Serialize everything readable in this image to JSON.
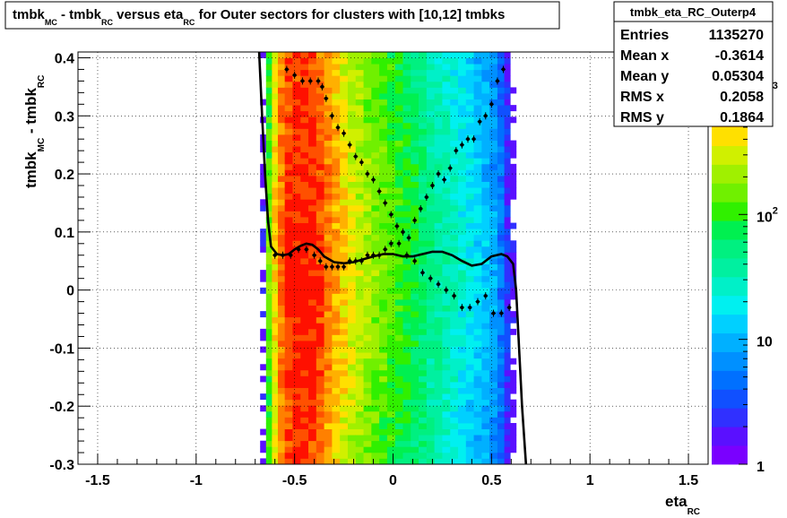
{
  "title": {
    "main1": "tmbk",
    "sub1": "MC",
    "main2": " - tmbk",
    "sub2": "RC",
    "main3": " versus eta",
    "sub3": "RC",
    "main4": " for Outer sectors for clusters with [10,12] tmbks"
  },
  "stats": {
    "name": "tmbk_eta_RC_Outerp4",
    "rows": [
      {
        "label": "Entries",
        "value": "1135270"
      },
      {
        "label": "Mean x",
        "value": "-0.3614"
      },
      {
        "label": "Mean y",
        "value": "0.05304"
      },
      {
        "label": "RMS x",
        "value": "0.2058"
      },
      {
        "label": "RMS y",
        "value": "0.1864"
      }
    ]
  },
  "chart_data": {
    "type": "heatmap",
    "xlabel": {
      "main": "eta",
      "sub": "RC"
    },
    "ylabel": {
      "main1": "tmbk",
      "sub1": "MC",
      "main2": " - tmbk",
      "sub2": "RC"
    },
    "xlim": [
      -1.6,
      1.6
    ],
    "ylim": [
      -0.3,
      0.41
    ],
    "xticks": [
      -1.5,
      -1,
      -0.5,
      0,
      0.5,
      1,
      1.5
    ],
    "xtick_labels": [
      "-1.5",
      "-1",
      "-0.5",
      "0",
      "0.5",
      "1",
      "1.5"
    ],
    "yticks": [
      -0.3,
      -0.2,
      -0.1,
      0,
      0.1,
      0.2,
      0.3,
      0.4
    ],
    "ytick_labels": [
      "-0.3",
      "-0.2",
      "-0.1",
      "0",
      "0.1",
      "0.2",
      "0.3",
      "0.4"
    ],
    "grid": true,
    "log_z": true,
    "zlim": [
      1,
      2000
    ],
    "z_ticks": [
      1,
      10,
      100,
      1000
    ],
    "z_tick_labels": [
      {
        "base": "1",
        "exp": ""
      },
      {
        "base": "10",
        "exp": ""
      },
      {
        "base": "10",
        "exp": "2"
      },
      {
        "base": "10",
        "exp": "3"
      }
    ],
    "palette": [
      "#7a00ff",
      "#5a10ff",
      "#3030ff",
      "#1050ff",
      "#0070ff",
      "#0090ff",
      "#00b0ff",
      "#00d0ff",
      "#00f0f0",
      "#00f0c8",
      "#00f0a0",
      "#00f080",
      "#00f050",
      "#30f000",
      "#70f000",
      "#a0f000",
      "#d0f000",
      "#ffe000",
      "#ffb000",
      "#ff8000",
      "#ff5000",
      "#ff1000"
    ],
    "density_profile": [
      {
        "eta": -0.66,
        "z": 2
      },
      {
        "eta": -0.63,
        "z": 150
      },
      {
        "eta": -0.6,
        "z": 500
      },
      {
        "eta": -0.57,
        "z": 1100
      },
      {
        "eta": -0.53,
        "z": 1800
      },
      {
        "eta": -0.49,
        "z": 2000
      },
      {
        "eta": -0.45,
        "z": 2000
      },
      {
        "eta": -0.41,
        "z": 1900
      },
      {
        "eta": -0.37,
        "z": 1400
      },
      {
        "eta": -0.33,
        "z": 1000
      },
      {
        "eta": -0.29,
        "z": 700
      },
      {
        "eta": -0.25,
        "z": 500
      },
      {
        "eta": -0.21,
        "z": 380
      },
      {
        "eta": -0.17,
        "z": 300
      },
      {
        "eta": -0.13,
        "z": 250
      },
      {
        "eta": -0.09,
        "z": 200
      },
      {
        "eta": -0.05,
        "z": 170
      },
      {
        "eta": -0.01,
        "z": 140
      },
      {
        "eta": 0.03,
        "z": 120
      },
      {
        "eta": 0.07,
        "z": 100
      },
      {
        "eta": 0.11,
        "z": 85
      },
      {
        "eta": 0.15,
        "z": 70
      },
      {
        "eta": 0.19,
        "z": 55
      },
      {
        "eta": 0.23,
        "z": 45
      },
      {
        "eta": 0.27,
        "z": 38
      },
      {
        "eta": 0.31,
        "z": 30
      },
      {
        "eta": 0.35,
        "z": 25
      },
      {
        "eta": 0.39,
        "z": 20
      },
      {
        "eta": 0.43,
        "z": 16
      },
      {
        "eta": 0.47,
        "z": 13
      },
      {
        "eta": 0.51,
        "z": 10
      },
      {
        "eta": 0.55,
        "z": 6
      },
      {
        "eta": 0.58,
        "z": 3
      },
      {
        "eta": 0.61,
        "z": 2
      }
    ],
    "upper_points": [
      {
        "x": -0.54,
        "y": 0.38
      },
      {
        "x": -0.5,
        "y": 0.37
      },
      {
        "x": -0.46,
        "y": 0.36
      },
      {
        "x": -0.42,
        "y": 0.36
      },
      {
        "x": -0.38,
        "y": 0.36
      },
      {
        "x": -0.36,
        "y": 0.35
      },
      {
        "x": -0.34,
        "y": 0.33
      },
      {
        "x": -0.31,
        "y": 0.3
      },
      {
        "x": -0.28,
        "y": 0.28
      },
      {
        "x": -0.25,
        "y": 0.27
      },
      {
        "x": -0.22,
        "y": 0.25
      },
      {
        "x": -0.19,
        "y": 0.23
      },
      {
        "x": -0.16,
        "y": 0.22
      },
      {
        "x": -0.13,
        "y": 0.2
      },
      {
        "x": -0.1,
        "y": 0.19
      },
      {
        "x": -0.07,
        "y": 0.17
      },
      {
        "x": -0.04,
        "y": 0.15
      },
      {
        "x": -0.01,
        "y": 0.13
      },
      {
        "x": 0.02,
        "y": 0.11
      },
      {
        "x": 0.05,
        "y": 0.1
      },
      {
        "x": 0.08,
        "y": 0.09
      },
      {
        "x": 0.11,
        "y": 0.12
      },
      {
        "x": 0.14,
        "y": 0.14
      },
      {
        "x": 0.17,
        "y": 0.16
      },
      {
        "x": 0.2,
        "y": 0.18
      },
      {
        "x": 0.23,
        "y": 0.2
      },
      {
        "x": 0.26,
        "y": 0.19
      },
      {
        "x": 0.29,
        "y": 0.21
      },
      {
        "x": 0.32,
        "y": 0.24
      },
      {
        "x": 0.35,
        "y": 0.25
      },
      {
        "x": 0.38,
        "y": 0.26
      },
      {
        "x": 0.41,
        "y": 0.26
      },
      {
        "x": 0.44,
        "y": 0.29
      },
      {
        "x": 0.47,
        "y": 0.3
      },
      {
        "x": 0.5,
        "y": 0.32
      },
      {
        "x": 0.53,
        "y": 0.36
      },
      {
        "x": 0.56,
        "y": 0.38
      }
    ],
    "lower_points": [
      {
        "x": -0.6,
        "y": 0.06
      },
      {
        "x": -0.56,
        "y": 0.06
      },
      {
        "x": -0.52,
        "y": 0.06
      },
      {
        "x": -0.48,
        "y": 0.07
      },
      {
        "x": -0.44,
        "y": 0.07
      },
      {
        "x": -0.4,
        "y": 0.06
      },
      {
        "x": -0.37,
        "y": 0.05
      },
      {
        "x": -0.34,
        "y": 0.04
      },
      {
        "x": -0.31,
        "y": 0.04
      },
      {
        "x": -0.28,
        "y": 0.04
      },
      {
        "x": -0.25,
        "y": 0.04
      },
      {
        "x": -0.22,
        "y": 0.05
      },
      {
        "x": -0.19,
        "y": 0.05
      },
      {
        "x": -0.16,
        "y": 0.05
      },
      {
        "x": -0.13,
        "y": 0.06
      },
      {
        "x": -0.1,
        "y": 0.06
      },
      {
        "x": -0.07,
        "y": 0.06
      },
      {
        "x": -0.04,
        "y": 0.07
      },
      {
        "x": -0.01,
        "y": 0.08
      },
      {
        "x": 0.03,
        "y": 0.08
      },
      {
        "x": 0.07,
        "y": 0.06
      },
      {
        "x": 0.11,
        "y": 0.05
      },
      {
        "x": 0.15,
        "y": 0.03
      },
      {
        "x": 0.19,
        "y": 0.02
      },
      {
        "x": 0.23,
        "y": 0.01
      },
      {
        "x": 0.27,
        "y": 0.0
      },
      {
        "x": 0.31,
        "y": -0.01
      },
      {
        "x": 0.35,
        "y": -0.03
      },
      {
        "x": 0.39,
        "y": -0.03
      },
      {
        "x": 0.43,
        "y": -0.02
      },
      {
        "x": 0.47,
        "y": -0.01
      },
      {
        "x": 0.51,
        "y": -0.04
      },
      {
        "x": 0.55,
        "y": -0.04
      },
      {
        "x": 0.59,
        "y": -0.03
      }
    ],
    "fit_curve": [
      {
        "x": -0.68,
        "y": 0.41
      },
      {
        "x": -0.665,
        "y": 0.3
      },
      {
        "x": -0.65,
        "y": 0.2
      },
      {
        "x": -0.635,
        "y": 0.12
      },
      {
        "x": -0.62,
        "y": 0.075
      },
      {
        "x": -0.59,
        "y": 0.062
      },
      {
        "x": -0.56,
        "y": 0.06
      },
      {
        "x": -0.53,
        "y": 0.062
      },
      {
        "x": -0.5,
        "y": 0.07
      },
      {
        "x": -0.47,
        "y": 0.076
      },
      {
        "x": -0.44,
        "y": 0.08
      },
      {
        "x": -0.41,
        "y": 0.078
      },
      {
        "x": -0.38,
        "y": 0.07
      },
      {
        "x": -0.35,
        "y": 0.058
      },
      {
        "x": -0.3,
        "y": 0.048
      },
      {
        "x": -0.25,
        "y": 0.046
      },
      {
        "x": -0.2,
        "y": 0.048
      },
      {
        "x": -0.15,
        "y": 0.053
      },
      {
        "x": -0.1,
        "y": 0.058
      },
      {
        "x": -0.05,
        "y": 0.062
      },
      {
        "x": 0.0,
        "y": 0.062
      },
      {
        "x": 0.05,
        "y": 0.058
      },
      {
        "x": 0.1,
        "y": 0.058
      },
      {
        "x": 0.15,
        "y": 0.062
      },
      {
        "x": 0.2,
        "y": 0.066
      },
      {
        "x": 0.25,
        "y": 0.066
      },
      {
        "x": 0.3,
        "y": 0.06
      },
      {
        "x": 0.35,
        "y": 0.05
      },
      {
        "x": 0.4,
        "y": 0.042
      },
      {
        "x": 0.45,
        "y": 0.045
      },
      {
        "x": 0.5,
        "y": 0.058
      },
      {
        "x": 0.55,
        "y": 0.062
      },
      {
        "x": 0.58,
        "y": 0.058
      },
      {
        "x": 0.61,
        "y": 0.045
      },
      {
        "x": 0.625,
        "y": 0.0
      },
      {
        "x": 0.64,
        "y": -0.1
      },
      {
        "x": 0.655,
        "y": -0.2
      },
      {
        "x": 0.675,
        "y": -0.3
      }
    ]
  }
}
